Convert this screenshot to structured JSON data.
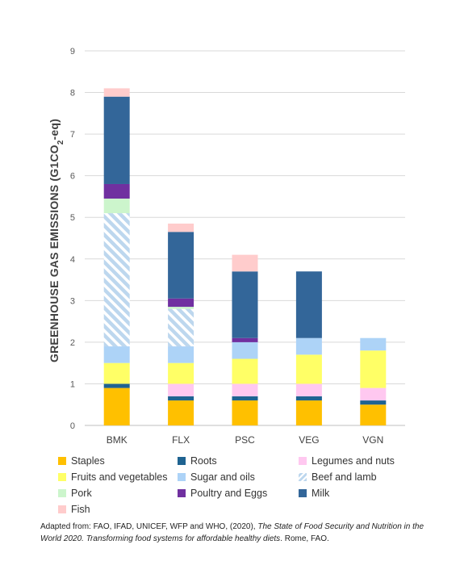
{
  "chart_data": {
    "type": "bar",
    "stacked": true,
    "ylabel": "GREENHOUSE GAS EMISSIONS (G1CO",
    "ylabel_sub": "2",
    "ylabel_end": "-eq)",
    "ylim": [
      0,
      9
    ],
    "yticks": [
      "0",
      "1",
      "2",
      "3",
      "4",
      "5",
      "6",
      "7",
      "8",
      "9"
    ],
    "grid": true,
    "legend_position": "bottom",
    "categories": [
      "BMK",
      "FLX",
      "PSC",
      "VEG",
      "VGN"
    ],
    "series": [
      {
        "name": "Staples",
        "color": "#FFC000",
        "values": [
          0.9,
          0.6,
          0.6,
          0.6,
          0.5
        ]
      },
      {
        "name": "Roots",
        "color": "#1F6391",
        "values": [
          0.1,
          0.1,
          0.1,
          0.1,
          0.1
        ]
      },
      {
        "name": "Legumes and nuts",
        "color": "#FFC8F0",
        "values": [
          0.0,
          0.3,
          0.3,
          0.3,
          0.3
        ]
      },
      {
        "name": "Fruits and vegetables",
        "color": "#FFFF66",
        "values": [
          0.5,
          0.5,
          0.6,
          0.7,
          0.9
        ]
      },
      {
        "name": "Sugar and oils",
        "color": "#ADD3F7",
        "values": [
          0.4,
          0.4,
          0.4,
          0.4,
          0.3
        ]
      },
      {
        "name": "Beef and lamb",
        "color": "#BDD7EE",
        "pattern": "hatch",
        "values": [
          3.2,
          0.9,
          0.0,
          0.0,
          0.0
        ]
      },
      {
        "name": "Pork",
        "color": "#CCF5CC",
        "values": [
          0.35,
          0.05,
          0.0,
          0.0,
          0.0
        ]
      },
      {
        "name": "Poultry and Eggs",
        "color": "#7030A0",
        "values": [
          0.35,
          0.2,
          0.1,
          0.0,
          0.0
        ]
      },
      {
        "name": "Milk",
        "color": "#336699",
        "values": [
          2.1,
          1.6,
          1.6,
          1.6,
          0.0
        ]
      },
      {
        "name": "Fish",
        "color": "#FFCCCC",
        "values": [
          0.2,
          0.2,
          0.4,
          0.0,
          0.0
        ]
      }
    ]
  },
  "source": {
    "prefix": "Adapted from: FAO, IFAD, UNICEF, WFP and WHO, (2020), ",
    "title": "The State of Food Security and Nutrition in the World 2020. Transforming food systems for affordable healthy diets",
    "suffix": ". Rome, FAO."
  }
}
